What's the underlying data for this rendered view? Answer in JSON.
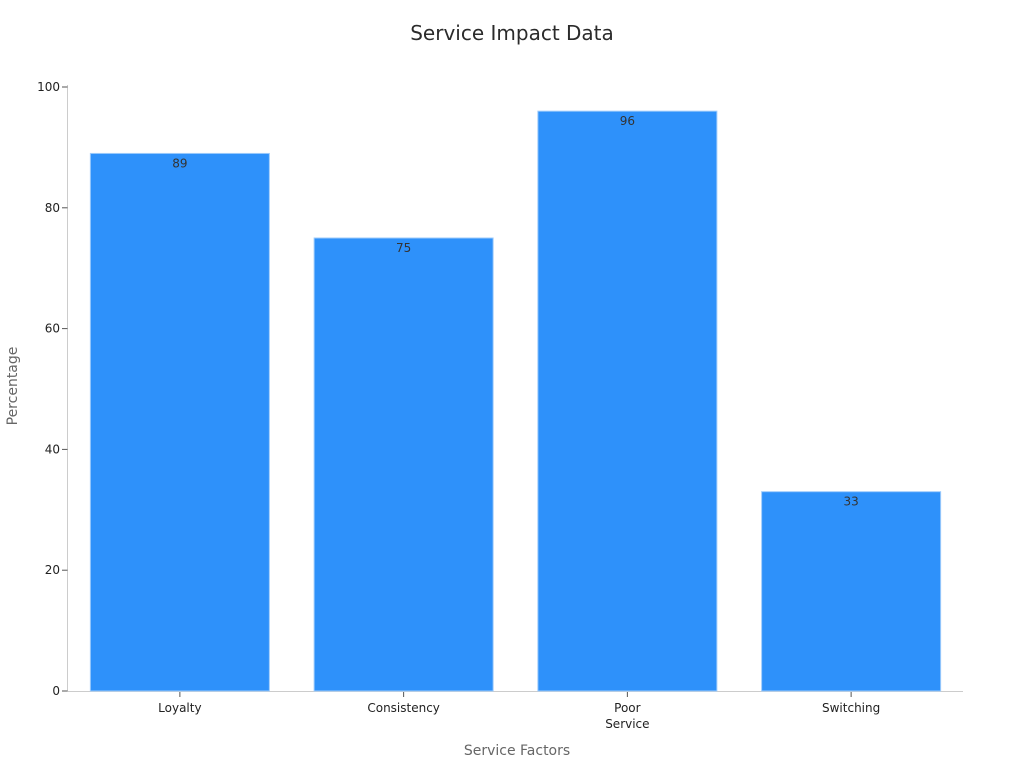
{
  "chart_data": {
    "type": "bar",
    "title": "Service Impact Data",
    "xlabel": "Service Factors",
    "ylabel": "Percentage",
    "categories": [
      "Loyalty",
      "Consistency",
      "Poor Service",
      "Switching"
    ],
    "series": [
      {
        "values": [
          89,
          75,
          96,
          33
        ]
      }
    ],
    "ylim": [
      0,
      100
    ],
    "yticks": [
      0,
      20,
      40,
      60,
      80,
      100
    ],
    "grid": false,
    "legend": "none",
    "bar_color": "#2E91FA",
    "data_labels": true
  }
}
